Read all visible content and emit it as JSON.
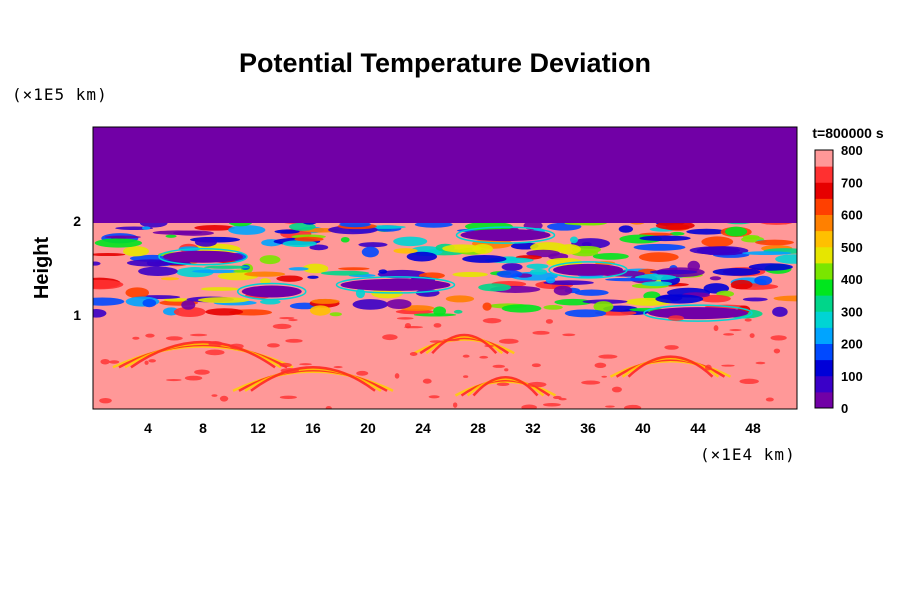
{
  "chart_data": {
    "type": "heatmap",
    "title": "Potential Temperature Deviation",
    "xlabel": "",
    "ylabel": "Height",
    "x_unit": "(×1E4 km)",
    "y_unit": "(×1E5 km)",
    "xlim": [
      0,
      51.2
    ],
    "ylim": [
      0,
      3.0
    ],
    "x_ticks": [
      4,
      8,
      12,
      16,
      20,
      24,
      28,
      32,
      36,
      40,
      44,
      48
    ],
    "y_ticks": [
      1,
      2
    ],
    "colorbar": {
      "title": "t=800000 s",
      "min": 0,
      "max": 800,
      "tick_values": [
        0,
        100,
        200,
        300,
        400,
        500,
        600,
        700,
        800
      ],
      "colors": [
        "#7100a6",
        "#3a00c8",
        "#0000d8",
        "#0049ff",
        "#00a4ff",
        "#00d4d4",
        "#00d68a",
        "#00e61e",
        "#7ae600",
        "#e6e600",
        "#ffc000",
        "#ff8000",
        "#ff4000",
        "#e60000",
        "#ff3030",
        "#ff9898"
      ]
    },
    "description_regions": {
      "upper_uniform_value": 0,
      "lower_background_value": 800,
      "boundary_height": 2.0
    }
  }
}
